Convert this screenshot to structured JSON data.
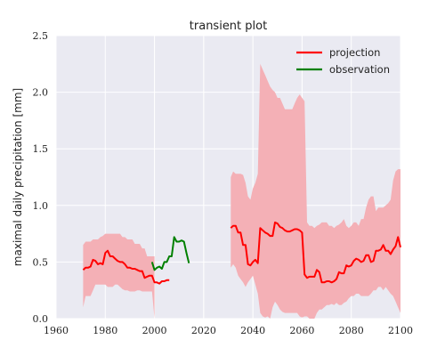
{
  "chart_data": {
    "type": "line",
    "title": "transient plot",
    "xlabel": "",
    "ylabel": "maximal daily precipitation [mm]",
    "xlim": [
      1960,
      2100
    ],
    "ylim": [
      0.0,
      2.5
    ],
    "xticks": [
      "1960",
      "1980",
      "2000",
      "2020",
      "2040",
      "2060",
      "2080",
      "2100"
    ],
    "yticks": [
      "0.0",
      "0.5",
      "1.0",
      "1.5",
      "2.0",
      "2.5"
    ],
    "grid": true,
    "legend_position": "top-right",
    "colors": {
      "projection": "#ff0000",
      "observation": "#008000",
      "band": "#f4b0b6",
      "plot_background": "#eaeaf2",
      "grid": "#ffffff"
    },
    "series": [
      {
        "name": "projection",
        "segments": [
          {
            "x": [
              1971,
              1972,
              1973,
              1974,
              1975,
              1976,
              1977,
              1978,
              1979,
              1980,
              1981,
              1982,
              1983,
              1984,
              1985,
              1986,
              1987,
              1988,
              1989,
              1990,
              1991,
              1992,
              1993,
              1994,
              1995,
              1996,
              1997,
              1998,
              1999,
              2000,
              2001,
              2002,
              2003,
              2004,
              2005,
              2006
            ],
            "y": [
              0.43,
              0.45,
              0.45,
              0.46,
              0.52,
              0.51,
              0.48,
              0.49,
              0.48,
              0.58,
              0.6,
              0.55,
              0.55,
              0.53,
              0.51,
              0.5,
              0.5,
              0.48,
              0.45,
              0.45,
              0.44,
              0.44,
              0.43,
              0.42,
              0.42,
              0.36,
              0.37,
              0.38,
              0.38,
              0.32,
              0.32,
              0.31,
              0.33,
              0.33,
              0.34,
              0.34
            ]
          },
          {
            "x": [
              2031,
              2032,
              2033,
              2034,
              2035,
              2036,
              2037,
              2038,
              2039,
              2040,
              2041,
              2042,
              2043,
              2044,
              2045,
              2046,
              2047,
              2048,
              2049,
              2050,
              2051,
              2052,
              2053,
              2054,
              2055,
              2056,
              2057,
              2058,
              2059,
              2060,
              2061,
              2062,
              2063,
              2064,
              2065,
              2066,
              2067,
              2068,
              2069,
              2070,
              2071,
              2072,
              2073,
              2074,
              2075,
              2076,
              2077,
              2078,
              2079,
              2080,
              2081,
              2082,
              2083,
              2084,
              2085,
              2086,
              2087,
              2088,
              2089,
              2090,
              2091,
              2092,
              2093,
              2094,
              2095,
              2096,
              2097,
              2098,
              2099,
              2100
            ],
            "y": [
              0.8,
              0.82,
              0.82,
              0.76,
              0.76,
              0.65,
              0.65,
              0.48,
              0.47,
              0.5,
              0.52,
              0.49,
              0.8,
              0.78,
              0.76,
              0.75,
              0.73,
              0.73,
              0.85,
              0.84,
              0.81,
              0.8,
              0.78,
              0.77,
              0.77,
              0.78,
              0.79,
              0.79,
              0.78,
              0.76,
              0.39,
              0.36,
              0.37,
              0.37,
              0.37,
              0.43,
              0.41,
              0.32,
              0.32,
              0.33,
              0.33,
              0.32,
              0.33,
              0.35,
              0.41,
              0.4,
              0.4,
              0.47,
              0.46,
              0.47,
              0.51,
              0.53,
              0.52,
              0.5,
              0.51,
              0.56,
              0.56,
              0.5,
              0.51,
              0.6,
              0.6,
              0.61,
              0.65,
              0.6,
              0.6,
              0.57,
              0.61,
              0.64,
              0.72,
              0.63
            ]
          }
        ]
      },
      {
        "name": "observation",
        "segments": [
          {
            "x": [
              1999,
              2000,
              2001,
              2002,
              2003,
              2004,
              2005,
              2006,
              2007,
              2008,
              2009,
              2010,
              2011,
              2012,
              2013,
              2014
            ],
            "y": [
              0.5,
              0.43,
              0.45,
              0.46,
              0.44,
              0.5,
              0.5,
              0.55,
              0.55,
              0.72,
              0.68,
              0.68,
              0.69,
              0.68,
              0.58,
              0.49
            ]
          }
        ]
      }
    ],
    "band": {
      "segments": [
        {
          "x": [
            1971,
            1972,
            1973,
            1974,
            1975,
            1976,
            1977,
            1978,
            1979,
            1980,
            1981,
            1982,
            1983,
            1984,
            1985,
            1986,
            1987,
            1988,
            1989,
            1990,
            1991,
            1992,
            1993,
            1994,
            1995,
            1996,
            1997,
            1998,
            1999,
            2000
          ],
          "upper": [
            0.65,
            0.68,
            0.68,
            0.68,
            0.7,
            0.7,
            0.7,
            0.72,
            0.73,
            0.75,
            0.75,
            0.75,
            0.75,
            0.75,
            0.75,
            0.75,
            0.72,
            0.72,
            0.7,
            0.7,
            0.7,
            0.66,
            0.66,
            0.66,
            0.62,
            0.62,
            0.55,
            0.55,
            0.55,
            0.55
          ],
          "lower": [
            0.1,
            0.2,
            0.2,
            0.2,
            0.25,
            0.3,
            0.3,
            0.3,
            0.3,
            0.3,
            0.28,
            0.28,
            0.28,
            0.3,
            0.3,
            0.28,
            0.26,
            0.25,
            0.25,
            0.24,
            0.24,
            0.24,
            0.25,
            0.25,
            0.24,
            0.24,
            0.24,
            0.24,
            0.24,
            0.0
          ]
        },
        {
          "x": [
            2031,
            2032,
            2033,
            2034,
            2035,
            2036,
            2037,
            2038,
            2039,
            2040,
            2041,
            2042,
            2043,
            2044,
            2045,
            2046,
            2047,
            2048,
            2049,
            2050,
            2051,
            2052,
            2053,
            2054,
            2055,
            2056,
            2057,
            2058,
            2059,
            2060,
            2061,
            2062,
            2063,
            2064,
            2065,
            2066,
            2067,
            2068,
            2069,
            2070,
            2071,
            2072,
            2073,
            2074,
            2075,
            2076,
            2077,
            2078,
            2079,
            2080,
            2081,
            2082,
            2083,
            2084,
            2085,
            2086,
            2087,
            2088,
            2089,
            2090,
            2091,
            2092,
            2093,
            2094,
            2095,
            2096,
            2097,
            2098,
            2099,
            2100
          ],
          "upper": [
            1.25,
            1.3,
            1.28,
            1.28,
            1.28,
            1.27,
            1.2,
            1.08,
            1.05,
            1.15,
            1.2,
            1.28,
            2.25,
            2.2,
            2.15,
            2.1,
            2.05,
            2.02,
            2.0,
            1.95,
            1.95,
            1.9,
            1.85,
            1.85,
            1.85,
            1.85,
            1.9,
            1.95,
            1.98,
            1.95,
            1.92,
            0.85,
            0.82,
            0.82,
            0.8,
            0.82,
            0.83,
            0.85,
            0.85,
            0.85,
            0.82,
            0.82,
            0.8,
            0.82,
            0.83,
            0.85,
            0.88,
            0.82,
            0.8,
            0.82,
            0.85,
            0.85,
            0.82,
            0.88,
            0.88,
            0.98,
            1.05,
            1.08,
            1.08,
            0.95,
            0.98,
            0.98,
            0.98,
            1.0,
            1.02,
            1.05,
            1.22,
            1.3,
            1.32,
            1.32
          ],
          "lower": [
            0.45,
            0.48,
            0.45,
            0.38,
            0.35,
            0.32,
            0.28,
            0.32,
            0.35,
            0.38,
            0.3,
            0.22,
            0.05,
            0.02,
            0.01,
            0.02,
            0.0,
            0.1,
            0.15,
            0.12,
            0.08,
            0.06,
            0.05,
            0.05,
            0.05,
            0.05,
            0.05,
            0.05,
            0.02,
            0.01,
            0.02,
            0.02,
            0.0,
            0.0,
            0.0,
            0.05,
            0.08,
            0.08,
            0.1,
            0.12,
            0.12,
            0.13,
            0.12,
            0.14,
            0.12,
            0.12,
            0.14,
            0.15,
            0.18,
            0.2,
            0.2,
            0.22,
            0.22,
            0.2,
            0.2,
            0.2,
            0.2,
            0.22,
            0.25,
            0.25,
            0.28,
            0.28,
            0.25,
            0.28,
            0.25,
            0.22,
            0.2,
            0.15,
            0.1,
            0.05
          ]
        }
      ]
    }
  }
}
